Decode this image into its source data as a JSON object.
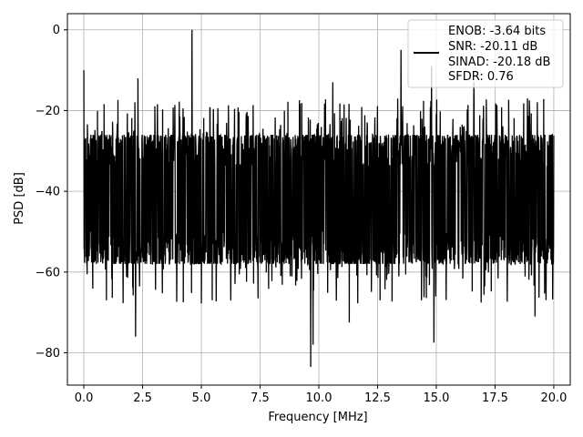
{
  "chart_data": {
    "type": "line",
    "xlabel": "Frequency [MHz]",
    "ylabel": "PSD [dB]",
    "xlim": [
      -0.7,
      20.7
    ],
    "ylim": [
      -88,
      4
    ],
    "xticks": [
      0,
      2.5,
      5,
      7.5,
      10,
      12.5,
      15,
      17.5,
      20
    ],
    "xtick_labels": [
      "0.0",
      "2.5",
      "5.0",
      "7.5",
      "10.0",
      "12.5",
      "15.0",
      "17.5",
      "20.0"
    ],
    "yticks": [
      0,
      -20,
      -40,
      -60,
      -80
    ],
    "ytick_labels": [
      "0",
      "−20",
      "−40",
      "−60",
      "−80"
    ],
    "grid": true,
    "legend_position": "top-right",
    "legend_lines": [
      "ENOB: -3.64 bits",
      "SNR: -20.11 dB",
      "SINAD: -20.18 dB",
      "SFDR: 0.76"
    ],
    "series": [
      {
        "color": "#000000",
        "noise": {
          "x_start": 0,
          "x_end": 20,
          "points": 2000,
          "upper_envelope": -26,
          "lower_envelope": -58
        },
        "peaks": [
          [
            0.0,
            -10
          ],
          [
            4.6,
            0
          ],
          [
            13.5,
            -5
          ],
          [
            14.8,
            -9
          ],
          [
            10.6,
            -13
          ],
          [
            16.6,
            -13
          ],
          [
            2.3,
            -12
          ]
        ],
        "dips": [
          [
            9.65,
            -83.5
          ],
          [
            9.75,
            -78
          ],
          [
            2.2,
            -76
          ],
          [
            14.9,
            -77.5
          ],
          [
            11.3,
            -72.5
          ],
          [
            19.2,
            -71
          ]
        ]
      }
    ]
  }
}
